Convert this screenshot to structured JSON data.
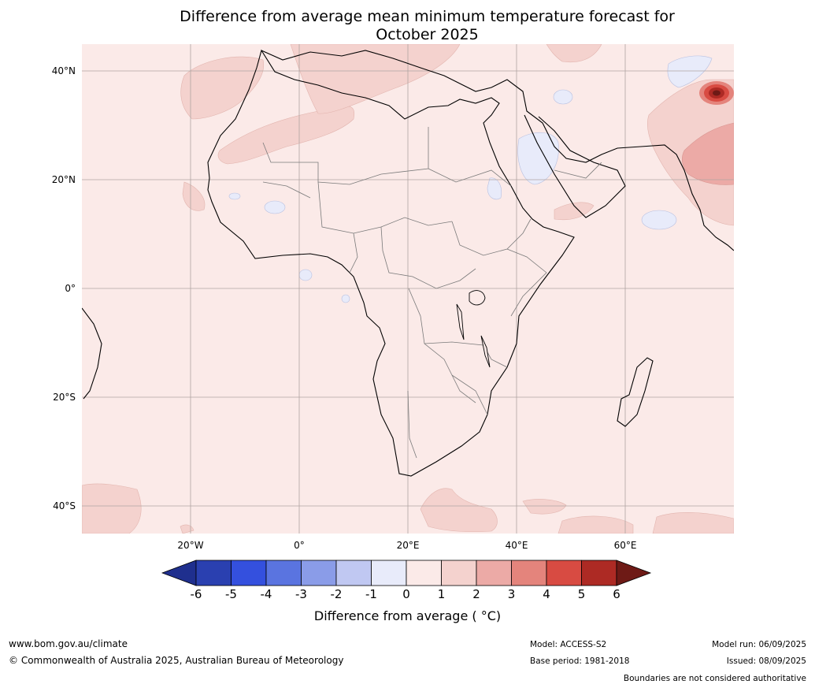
{
  "title_line1": "Difference from average mean minimum temperature forecast for",
  "title_line2": "October 2025",
  "lat_labels": [
    "40°N",
    "20°N",
    "0°",
    "20°S",
    "40°S"
  ],
  "lon_labels": [
    "20°W",
    "0°",
    "20°E",
    "40°E",
    "60°E"
  ],
  "colorbar": {
    "ticks": [
      "-6",
      "-5",
      "-4",
      "-3",
      "-2",
      "-1",
      "0",
      "1",
      "2",
      "3",
      "4",
      "5",
      "6"
    ],
    "colors": [
      "#1f2f8e",
      "#2a40b0",
      "#3450de",
      "#5a74e0",
      "#8a9ce8",
      "#c0c8f2",
      "#e8ebfa",
      "#fbeae8",
      "#f4d2ce",
      "#ecaaa6",
      "#e4847c",
      "#d84b42",
      "#ad2a24",
      "#6e1a16"
    ],
    "title": "Difference from average ( °C)"
  },
  "footer": {
    "website": "www.bom.gov.au/climate",
    "copyright": "© Commonwealth of Australia 2025, Australian Bureau of Meteorology",
    "model": "Model: ACCESS-S2",
    "base_period": "Base period: 1981-2018",
    "model_run": "Model run: 06/09/2025",
    "issued": "Issued: 08/09/2025",
    "disclaimer": "Boundaries are not considered authoritative"
  }
}
